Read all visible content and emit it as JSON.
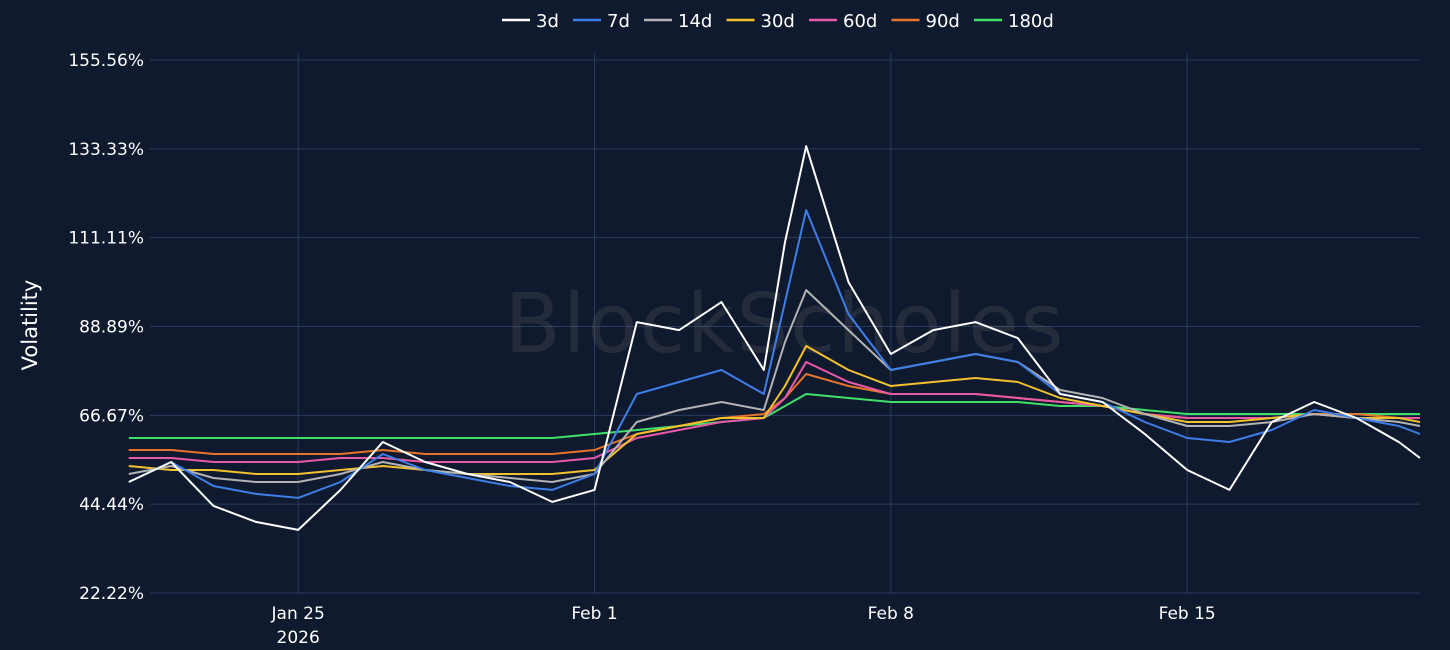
{
  "chart_data": {
    "type": "line",
    "ylabel": "Volatility",
    "xlabel": "",
    "y_ticks": [
      "22.22%",
      "44.44%",
      "66.67%",
      "88.89%",
      "111.11%",
      "133.33%",
      "155.56%"
    ],
    "ylim": [
      22.22,
      155.56
    ],
    "x_ticks": [
      {
        "date": "2026-01-25",
        "label": "Jan 25",
        "sublabel": "2026"
      },
      {
        "date": "2026-02-01",
        "label": "Feb 1",
        "sublabel": ""
      },
      {
        "date": "2026-02-08",
        "label": "Feb 8",
        "sublabel": ""
      },
      {
        "date": "2026-02-15",
        "label": "Feb 15",
        "sublabel": ""
      }
    ],
    "xlim": [
      "2026-01-21T12:00",
      "2026-02-20T12:00"
    ],
    "grid": true,
    "legend_position": "top-center",
    "watermark": "BlockScholes",
    "series": [
      {
        "name": "3d",
        "color": "#ffffff",
        "x": [
          "2026-01-21",
          "2026-01-22",
          "2026-01-23",
          "2026-01-24",
          "2026-01-25",
          "2026-01-26",
          "2026-01-27",
          "2026-01-28",
          "2026-01-29",
          "2026-01-30",
          "2026-01-31",
          "2026-02-01",
          "2026-02-02",
          "2026-02-03",
          "2026-02-04",
          "2026-02-05",
          "2026-02-05T12:00",
          "2026-02-06",
          "2026-02-07",
          "2026-02-08",
          "2026-02-09",
          "2026-02-10",
          "2026-02-11",
          "2026-02-12",
          "2026-02-13",
          "2026-02-14",
          "2026-02-15",
          "2026-02-16",
          "2026-02-17",
          "2026-02-18",
          "2026-02-19",
          "2026-02-20",
          "2026-02-20T12:00"
        ],
        "y": [
          50,
          55,
          44,
          40,
          38,
          48,
          60,
          55,
          52,
          50,
          45,
          48,
          90,
          88,
          95,
          78,
          110,
          134,
          100,
          82,
          88,
          90,
          86,
          72,
          70,
          62,
          53,
          48,
          65,
          70,
          66,
          60,
          56
        ]
      },
      {
        "name": "7d",
        "color": "#3d7ee8",
        "x": [
          "2026-01-21",
          "2026-01-22",
          "2026-01-23",
          "2026-01-24",
          "2026-01-25",
          "2026-01-26",
          "2026-01-27",
          "2026-01-28",
          "2026-01-29",
          "2026-01-30",
          "2026-01-31",
          "2026-02-01",
          "2026-02-02",
          "2026-02-03",
          "2026-02-04",
          "2026-02-05",
          "2026-02-05T12:00",
          "2026-02-06",
          "2026-02-07",
          "2026-02-08",
          "2026-02-09",
          "2026-02-10",
          "2026-02-11",
          "2026-02-12",
          "2026-02-13",
          "2026-02-14",
          "2026-02-15",
          "2026-02-16",
          "2026-02-17",
          "2026-02-18",
          "2026-02-19",
          "2026-02-20",
          "2026-02-20T12:00"
        ],
        "y": [
          50,
          55,
          49,
          47,
          46,
          50,
          57,
          53,
          51,
          49,
          48,
          52,
          72,
          75,
          78,
          72,
          95,
          118,
          92,
          78,
          80,
          82,
          80,
          72,
          70,
          65,
          61,
          60,
          63,
          68,
          66,
          64,
          62
        ]
      },
      {
        "name": "14d",
        "color": "#b3b3b3",
        "x": [
          "2026-01-21",
          "2026-01-22",
          "2026-01-23",
          "2026-01-24",
          "2026-01-25",
          "2026-01-26",
          "2026-01-27",
          "2026-01-28",
          "2026-01-29",
          "2026-01-30",
          "2026-01-31",
          "2026-02-01",
          "2026-02-02",
          "2026-02-03",
          "2026-02-04",
          "2026-02-05",
          "2026-02-05T12:00",
          "2026-02-06",
          "2026-02-07",
          "2026-02-08",
          "2026-02-09",
          "2026-02-10",
          "2026-02-11",
          "2026-02-12",
          "2026-02-13",
          "2026-02-14",
          "2026-02-15",
          "2026-02-16",
          "2026-02-17",
          "2026-02-18",
          "2026-02-19",
          "2026-02-20",
          "2026-02-20T12:00"
        ],
        "y": [
          52,
          54,
          51,
          50,
          50,
          52,
          55,
          53,
          52,
          51,
          50,
          52,
          65,
          68,
          70,
          68,
          85,
          98,
          88,
          78,
          80,
          82,
          80,
          73,
          71,
          67,
          64,
          64,
          65,
          67,
          66,
          65,
          64
        ]
      },
      {
        "name": "30d",
        "color": "#f2c12e",
        "x": [
          "2026-01-21",
          "2026-01-22",
          "2026-01-23",
          "2026-01-24",
          "2026-01-25",
          "2026-01-26",
          "2026-01-27",
          "2026-01-28",
          "2026-01-29",
          "2026-01-30",
          "2026-01-31",
          "2026-02-01",
          "2026-02-02",
          "2026-02-03",
          "2026-02-04",
          "2026-02-05",
          "2026-02-05T12:00",
          "2026-02-06",
          "2026-02-07",
          "2026-02-08",
          "2026-02-09",
          "2026-02-10",
          "2026-02-11",
          "2026-02-12",
          "2026-02-13",
          "2026-02-14",
          "2026-02-15",
          "2026-02-16",
          "2026-02-17",
          "2026-02-18",
          "2026-02-19",
          "2026-02-20",
          "2026-02-20T12:00"
        ],
        "y": [
          54,
          53,
          53,
          52,
          52,
          53,
          54,
          53,
          52,
          52,
          52,
          53,
          62,
          64,
          66,
          66,
          74,
          84,
          78,
          74,
          75,
          76,
          75,
          71,
          69,
          67,
          65,
          65,
          66,
          67,
          66,
          66,
          65
        ]
      },
      {
        "name": "60d",
        "color": "#e85aa8",
        "x": [
          "2026-01-21",
          "2026-01-22",
          "2026-01-23",
          "2026-01-24",
          "2026-01-25",
          "2026-01-26",
          "2026-01-27",
          "2026-01-28",
          "2026-01-29",
          "2026-01-30",
          "2026-01-31",
          "2026-02-01",
          "2026-02-02",
          "2026-02-03",
          "2026-02-04",
          "2026-02-05",
          "2026-02-05T12:00",
          "2026-02-06",
          "2026-02-07",
          "2026-02-08",
          "2026-02-09",
          "2026-02-10",
          "2026-02-11",
          "2026-02-12",
          "2026-02-13",
          "2026-02-14",
          "2026-02-15",
          "2026-02-16",
          "2026-02-17",
          "2026-02-18",
          "2026-02-19",
          "2026-02-20",
          "2026-02-20T12:00"
        ],
        "y": [
          56,
          56,
          55,
          55,
          55,
          56,
          56,
          55,
          55,
          55,
          55,
          56,
          61,
          63,
          65,
          66,
          71,
          80,
          75,
          72,
          72,
          72,
          71,
          70,
          69,
          67,
          66,
          66,
          66,
          67,
          66,
          66,
          66
        ]
      },
      {
        "name": "90d",
        "color": "#e8742a",
        "x": [
          "2026-01-21",
          "2026-01-22",
          "2026-01-23",
          "2026-01-24",
          "2026-01-25",
          "2026-01-26",
          "2026-01-27",
          "2026-01-28",
          "2026-01-29",
          "2026-01-30",
          "2026-01-31",
          "2026-02-01",
          "2026-02-02",
          "2026-02-03",
          "2026-02-04",
          "2026-02-05",
          "2026-02-05T12:00",
          "2026-02-06",
          "2026-02-07",
          "2026-02-08",
          "2026-02-09",
          "2026-02-10",
          "2026-02-11",
          "2026-02-12",
          "2026-02-13",
          "2026-02-14",
          "2026-02-15",
          "2026-02-16",
          "2026-02-17",
          "2026-02-18",
          "2026-02-19",
          "2026-02-20",
          "2026-02-20T12:00"
        ],
        "y": [
          58,
          58,
          57,
          57,
          57,
          57,
          58,
          57,
          57,
          57,
          57,
          58,
          62,
          64,
          66,
          67,
          71,
          77,
          74,
          72,
          72,
          72,
          71,
          70,
          69,
          67,
          66,
          66,
          66,
          67,
          67,
          66,
          66
        ]
      },
      {
        "name": "180d",
        "color": "#3ee06a",
        "x": [
          "2026-01-21",
          "2026-01-22",
          "2026-01-23",
          "2026-01-24",
          "2026-01-25",
          "2026-01-26",
          "2026-01-27",
          "2026-01-28",
          "2026-01-29",
          "2026-01-30",
          "2026-01-31",
          "2026-02-01",
          "2026-02-02",
          "2026-02-03",
          "2026-02-04",
          "2026-02-05",
          "2026-02-05T12:00",
          "2026-02-06",
          "2026-02-07",
          "2026-02-08",
          "2026-02-09",
          "2026-02-10",
          "2026-02-11",
          "2026-02-12",
          "2026-02-13",
          "2026-02-14",
          "2026-02-15",
          "2026-02-16",
          "2026-02-17",
          "2026-02-18",
          "2026-02-19",
          "2026-02-20",
          "2026-02-20T12:00"
        ],
        "y": [
          61,
          61,
          61,
          61,
          61,
          61,
          61,
          61,
          61,
          61,
          61,
          62,
          63,
          64,
          65,
          66,
          69,
          72,
          71,
          70,
          70,
          70,
          70,
          69,
          69,
          68,
          67,
          67,
          67,
          67,
          67,
          67,
          67
        ]
      }
    ]
  }
}
